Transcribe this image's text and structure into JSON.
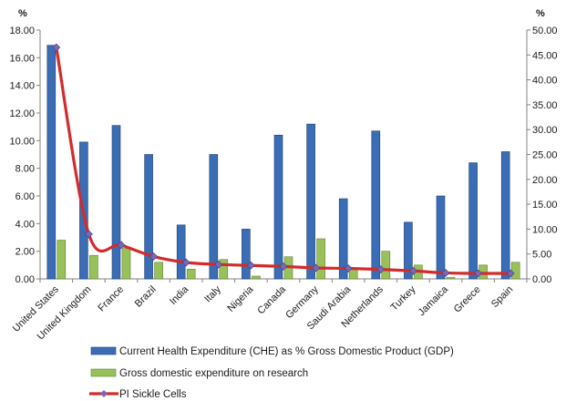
{
  "chart_data": {
    "type": "bar",
    "categories": [
      "United States",
      "United Kingdom",
      "France",
      "Brazil",
      "India",
      "Italy",
      "Nigeria",
      "Canada",
      "Germany",
      "Saudi Arabia",
      "Netherlands",
      "Turkey",
      "Jamaica",
      "Greece",
      "Spain"
    ],
    "series": [
      {
        "name": "Current Health Expenditure (CHE) as % Gross Domestic Product (GDP)",
        "type": "bar",
        "axis": "left",
        "color": "#3a6db5",
        "values": [
          16.9,
          9.9,
          11.1,
          9.0,
          3.9,
          9.0,
          3.6,
          10.4,
          11.2,
          5.8,
          10.7,
          4.1,
          6.0,
          8.4,
          9.2
        ]
      },
      {
        "name": "Gross domestic expenditure on research",
        "type": "bar",
        "axis": "left",
        "color": "#98c15a",
        "values": [
          2.8,
          1.7,
          2.2,
          1.2,
          0.7,
          1.4,
          0.2,
          1.6,
          2.9,
          0.8,
          2.0,
          1.0,
          0.1,
          1.0,
          1.2
        ]
      },
      {
        "name": "PI Sickle Cells",
        "type": "line",
        "axis": "right",
        "color": "#d62a2a",
        "marker_color": "#7a68b5",
        "values": [
          46.5,
          9.0,
          6.8,
          4.5,
          3.3,
          2.9,
          2.7,
          2.5,
          2.2,
          2.1,
          1.9,
          1.6,
          1.2,
          1.1,
          1.1
        ]
      }
    ],
    "y_left": {
      "unit": "%",
      "ylim": [
        0,
        18
      ],
      "ticks": [
        "0.00",
        "2.00",
        "4.00",
        "6.00",
        "8.00",
        "10.00",
        "12.00",
        "14.00",
        "16.00",
        "18.00"
      ]
    },
    "y_right": {
      "unit": "%",
      "ylim": [
        0,
        50
      ],
      "ticks": [
        "0.00",
        "5.00",
        "10.00",
        "15.00",
        "20.00",
        "25.00",
        "30.00",
        "35.00",
        "40.00",
        "45.00",
        "50.00"
      ]
    },
    "grid": false,
    "legend_position": "bottom"
  }
}
